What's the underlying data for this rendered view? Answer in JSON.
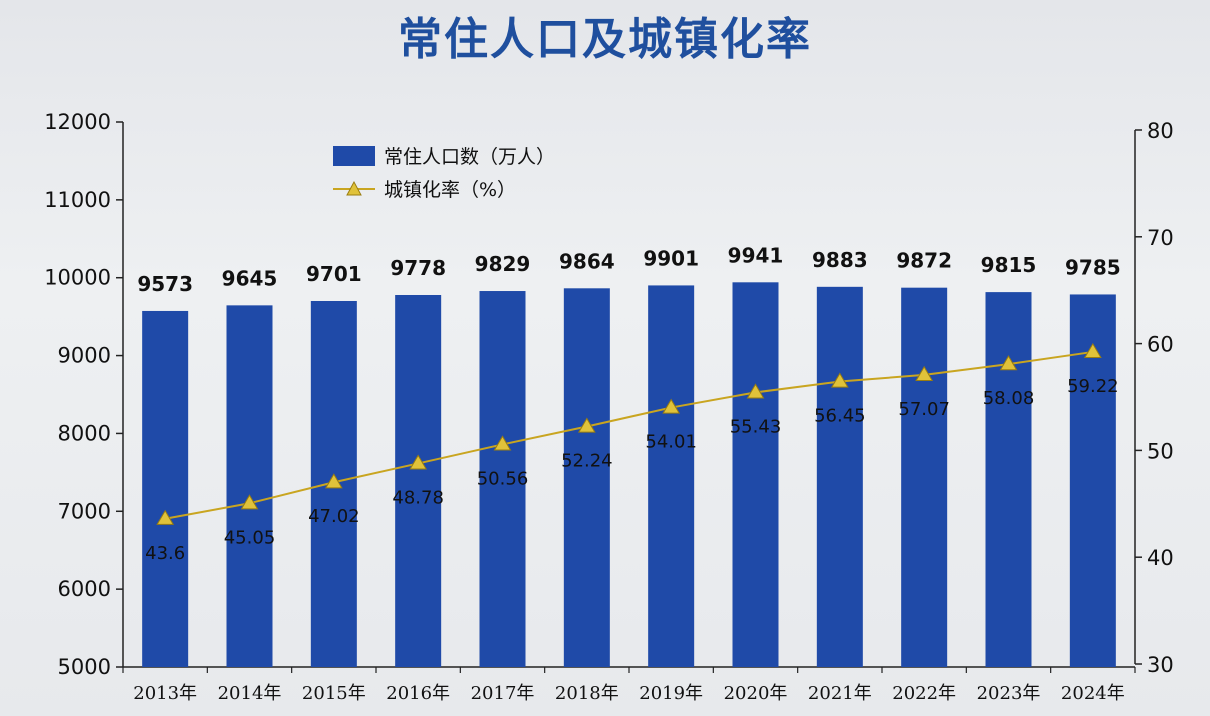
{
  "chart_data": {
    "type": "bar",
    "title": "常住人口及城镇化率",
    "categories": [
      "2013年",
      "2014年",
      "2015年",
      "2016年",
      "2017年",
      "2018年",
      "2019年",
      "2020年",
      "2021年",
      "2022年",
      "2023年",
      "2024年"
    ],
    "series": [
      {
        "name": "常住人口数（万人）",
        "type": "bar",
        "axis": "left",
        "values": [
          9573,
          9645,
          9701,
          9778,
          9829,
          9864,
          9901,
          9941,
          9883,
          9872,
          9815,
          9785
        ],
        "labels": [
          "9573",
          "9645",
          "9701",
          "9778",
          "9829",
          "9864",
          "9901",
          "9941",
          "9883",
          "9872",
          "9815",
          "9785"
        ]
      },
      {
        "name": "城镇化率（%）",
        "type": "line",
        "axis": "right",
        "marker": "triangle",
        "values": [
          43.6,
          45.05,
          47.02,
          48.78,
          50.56,
          52.24,
          54.01,
          55.43,
          56.45,
          57.07,
          58.08,
          59.22
        ],
        "labels": [
          "43.6",
          "45.05",
          "47.02",
          "48.78",
          "50.56",
          "52.24",
          "54.01",
          "55.43",
          "56.45",
          "57.07",
          "58.08",
          "59.22"
        ]
      }
    ],
    "y_left": {
      "min": 5000,
      "max": 12000,
      "ticks": [
        "5000",
        "6000",
        "7000",
        "8000",
        "9000",
        "10000",
        "11000",
        "12000"
      ]
    },
    "y_right": {
      "min": 30,
      "max": 80,
      "ticks": [
        "30",
        "40",
        "50",
        "60",
        "70",
        "80"
      ]
    },
    "legend_position": "top-left",
    "grid": false,
    "colors": {
      "bar": "#1f4aa8",
      "line": "#c9a520",
      "marker": "#e0c23a",
      "title": "#1f4f9e"
    }
  }
}
